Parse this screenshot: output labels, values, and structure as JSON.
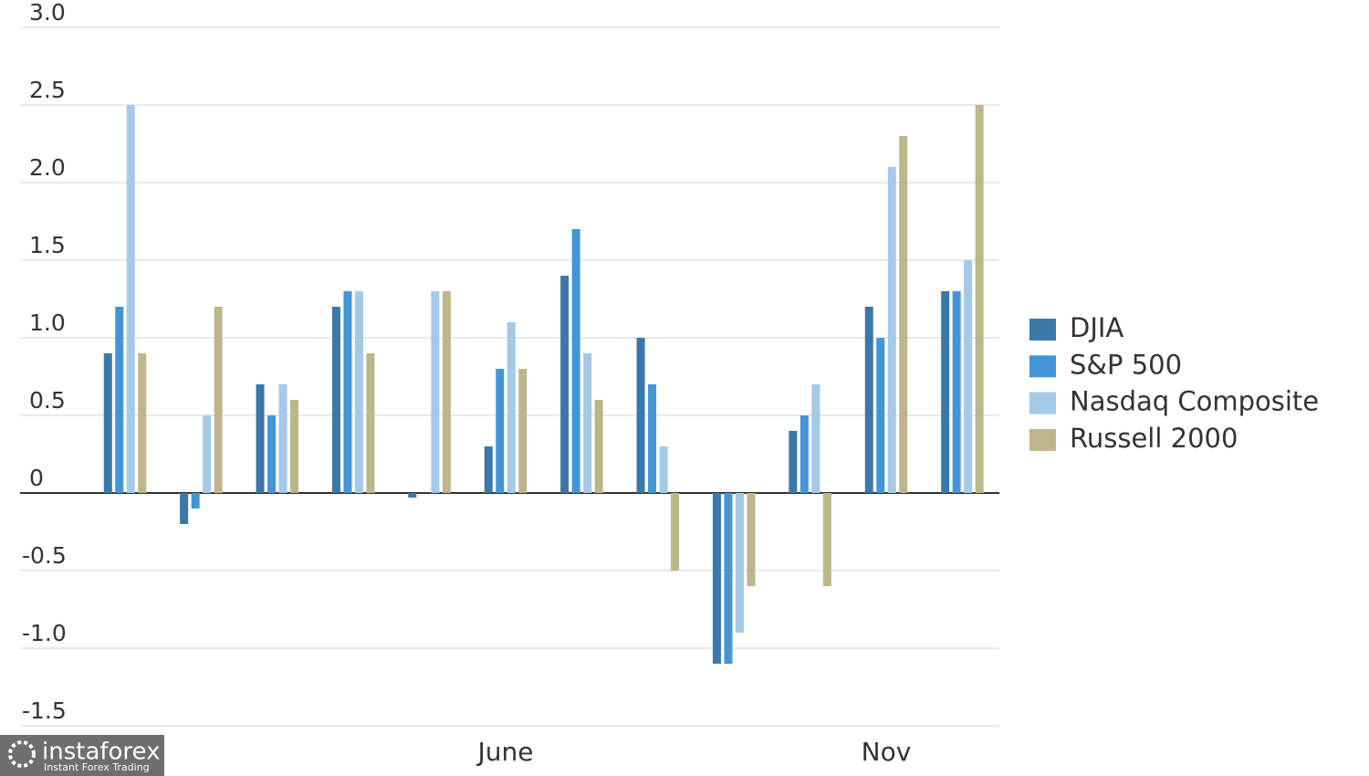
{
  "chart_data": {
    "type": "bar",
    "categories": [
      null,
      null,
      null,
      null,
      null,
      "June",
      null,
      null,
      null,
      null,
      "Nov",
      null
    ],
    "series": [
      {
        "name": "DJIA",
        "color": "#3a78a9",
        "values": [
          0.9,
          -0.2,
          0.7,
          1.2,
          -0.03,
          0.3,
          1.4,
          1.0,
          -1.1,
          0.4,
          1.2,
          1.3
        ]
      },
      {
        "name": "S&P 500",
        "color": "#4296d8",
        "values": [
          1.2,
          -0.1,
          0.5,
          1.3,
          0,
          0.8,
          1.7,
          0.7,
          -1.1,
          0.5,
          1.0,
          1.3
        ]
      },
      {
        "name": "Nasdaq Composite",
        "color": "#a4c9e9",
        "values": [
          2.5,
          0.5,
          0.7,
          1.3,
          1.3,
          1.1,
          0.9,
          0.3,
          -0.9,
          0.7,
          2.1,
          1.5
        ]
      },
      {
        "name": "Russell 2000",
        "color": "#bdb68a",
        "values": [
          0.9,
          1.2,
          0.6,
          0.9,
          1.3,
          0.8,
          0.6,
          -0.5,
          -0.6,
          -0.6,
          2.3,
          2.5
        ]
      }
    ],
    "ylim": [
      -1.5,
      3.0
    ],
    "yticks": [
      {
        "value": 3.0,
        "label": "3.0"
      },
      {
        "value": 2.5,
        "label": "2.5"
      },
      {
        "value": 2.0,
        "label": "2.0"
      },
      {
        "value": 1.5,
        "label": "1.5"
      },
      {
        "value": 1.0,
        "label": "1.0"
      },
      {
        "value": 0.5,
        "label": "0.5"
      },
      0,
      {
        "value": -0.5,
        "label": "-0.5"
      },
      {
        "value": -1.0,
        "label": "-1.0"
      },
      {
        "value": -1.5,
        "label": "-1.5"
      }
    ],
    "grid": true,
    "legend": "right"
  },
  "watermark": {
    "brand": "instaforex",
    "tagline": "Instant Forex Trading"
  }
}
